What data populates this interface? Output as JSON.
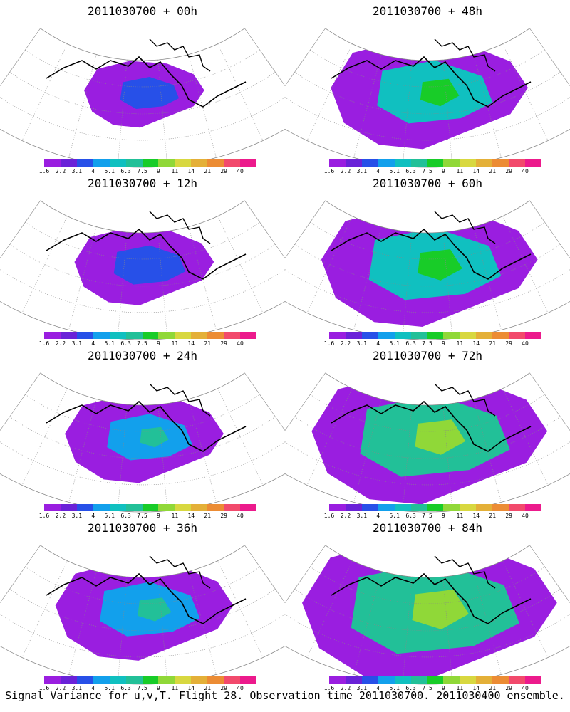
{
  "figure": {
    "caption": "Signal Variance for u,v,T. Flight 28. Observation time 2011030700. 2011030400 ensemble."
  },
  "panels": [
    {
      "title": "2011030700 + 00h",
      "lead": "00h",
      "level": 0
    },
    {
      "title": "2011030700 + 48h",
      "lead": "48h",
      "level": 4
    },
    {
      "title": "2011030700 + 12h",
      "lead": "12h",
      "level": 1
    },
    {
      "title": "2011030700 + 60h",
      "lead": "60h",
      "level": 5
    },
    {
      "title": "2011030700 + 24h",
      "lead": "24h",
      "level": 2
    },
    {
      "title": "2011030700 + 72h",
      "lead": "72h",
      "level": 6
    },
    {
      "title": "2011030700 + 36h",
      "lead": "36h",
      "level": 3
    },
    {
      "title": "2011030700 + 84h",
      "lead": "84h",
      "level": 7
    }
  ],
  "colorbar": {
    "labels": [
      "1.6",
      "2.2",
      "3.1",
      "4",
      "5.1",
      "6.3",
      "7.5",
      "9",
      "11",
      "14",
      "21",
      "29",
      "40"
    ],
    "colors": [
      "#9a1ee0",
      "#6a22d8",
      "#2750e8",
      "#12a0ec",
      "#10c0c0",
      "#22c098",
      "#18cc28",
      "#90d838",
      "#d8d840",
      "#e4b038",
      "#ec8c34",
      "#f24a6c",
      "#ec1a8c"
    ]
  }
}
